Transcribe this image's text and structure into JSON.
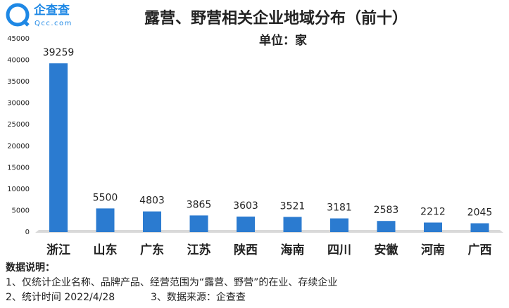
{
  "logo": {
    "name": "企查查",
    "domain": "Qcc.com"
  },
  "chart_data": {
    "type": "bar",
    "title": "露营、野营相关企业地域分布（前十）",
    "subtitle": "单位：家",
    "categories": [
      "浙江",
      "山东",
      "广东",
      "江苏",
      "陕西",
      "海南",
      "四川",
      "安徽",
      "河南",
      "广西"
    ],
    "values": [
      39259,
      5500,
      4803,
      3865,
      3603,
      3521,
      3181,
      2583,
      2212,
      2045
    ],
    "color": "#2b7bd0",
    "ylim": [
      0,
      45000
    ],
    "yticks": [
      0,
      5000,
      10000,
      15000,
      20000,
      25000,
      30000,
      35000,
      40000,
      45000
    ],
    "grid": false
  },
  "notes": {
    "heading": "数据说明：",
    "line1": "1、仅统计企业名称、品牌产品、经营范围为“露营、野营”的在业、存续企业",
    "line2": "2、统计时间 2022/4/28",
    "line3": "3、数据来源：企查查"
  }
}
